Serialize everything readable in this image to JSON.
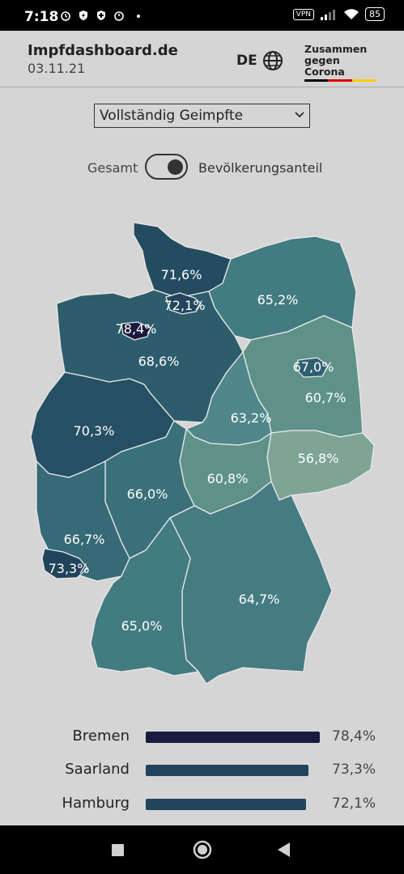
{
  "status_bar": {
    "time": "7:18",
    "icons_left": [
      "alarm-icon",
      "shield-bolt-icon",
      "shield-icon",
      "timer-icon",
      "dot-icon"
    ],
    "vpn": "VPN",
    "battery": "85"
  },
  "header": {
    "title": "Impfdashboard.de",
    "date": "03.11.21",
    "language": "DE",
    "logo_line1": "Zusammen",
    "logo_line2": "gegen Corona",
    "flag_colors": [
      "#000000",
      "#dd0000",
      "#ffcc00"
    ]
  },
  "controls": {
    "metric_select": "Vollständig Geimpfte",
    "toggle_left": "Gesamt",
    "toggle_right": "Bevölkerungsanteil",
    "toggle_state": "right"
  },
  "map": {
    "regions": [
      {
        "name": "Schleswig-Holstein",
        "value": "71,6%",
        "color": "#244b60"
      },
      {
        "name": "Hamburg",
        "value": "72,1%",
        "color": "#22465c"
      },
      {
        "name": "Bremen",
        "value": "78,4%",
        "color": "#1c1a3e"
      },
      {
        "name": "Mecklenburg-Vorpommern",
        "value": "65,2%",
        "color": "#427b81"
      },
      {
        "name": "Niedersachsen",
        "value": "68,6%",
        "color": "#2d5d6c"
      },
      {
        "name": "Berlin",
        "value": "67,0%",
        "color": "#2f5f70"
      },
      {
        "name": "Brandenburg",
        "value": "60,7%",
        "color": "#5e9289"
      },
      {
        "name": "Sachsen-Anhalt",
        "value": "63,2%",
        "color": "#4f878a"
      },
      {
        "name": "Nordrhein-Westfalen",
        "value": "70,3%",
        "color": "#264f63"
      },
      {
        "name": "Sachsen",
        "value": "56,8%",
        "color": "#7ea496"
      },
      {
        "name": "Thüringen",
        "value": "60,8%",
        "color": "#5e9289"
      },
      {
        "name": "Hessen",
        "value": "66,0%",
        "color": "#3a7079"
      },
      {
        "name": "Rheinland-Pfalz",
        "value": "66,7%",
        "color": "#356a76"
      },
      {
        "name": "Saarland",
        "value": "73,3%",
        "color": "#22445a"
      },
      {
        "name": "Bayern",
        "value": "64,7%",
        "color": "#457c81"
      },
      {
        "name": "Baden-Württemberg",
        "value": "65,0%",
        "color": "#427b81"
      }
    ]
  },
  "ranking": [
    {
      "name": "Bremen",
      "value": "78,4%",
      "fraction": 0.784,
      "color": "#1c1a3e"
    },
    {
      "name": "Saarland",
      "value": "73,3%",
      "fraction": 0.733,
      "color": "#22445a"
    },
    {
      "name": "Hamburg",
      "value": "72,1%",
      "fraction": 0.721,
      "color": "#22465c"
    }
  ],
  "nav_bar": {
    "buttons": [
      "recents-button",
      "home-button",
      "back-button"
    ]
  }
}
